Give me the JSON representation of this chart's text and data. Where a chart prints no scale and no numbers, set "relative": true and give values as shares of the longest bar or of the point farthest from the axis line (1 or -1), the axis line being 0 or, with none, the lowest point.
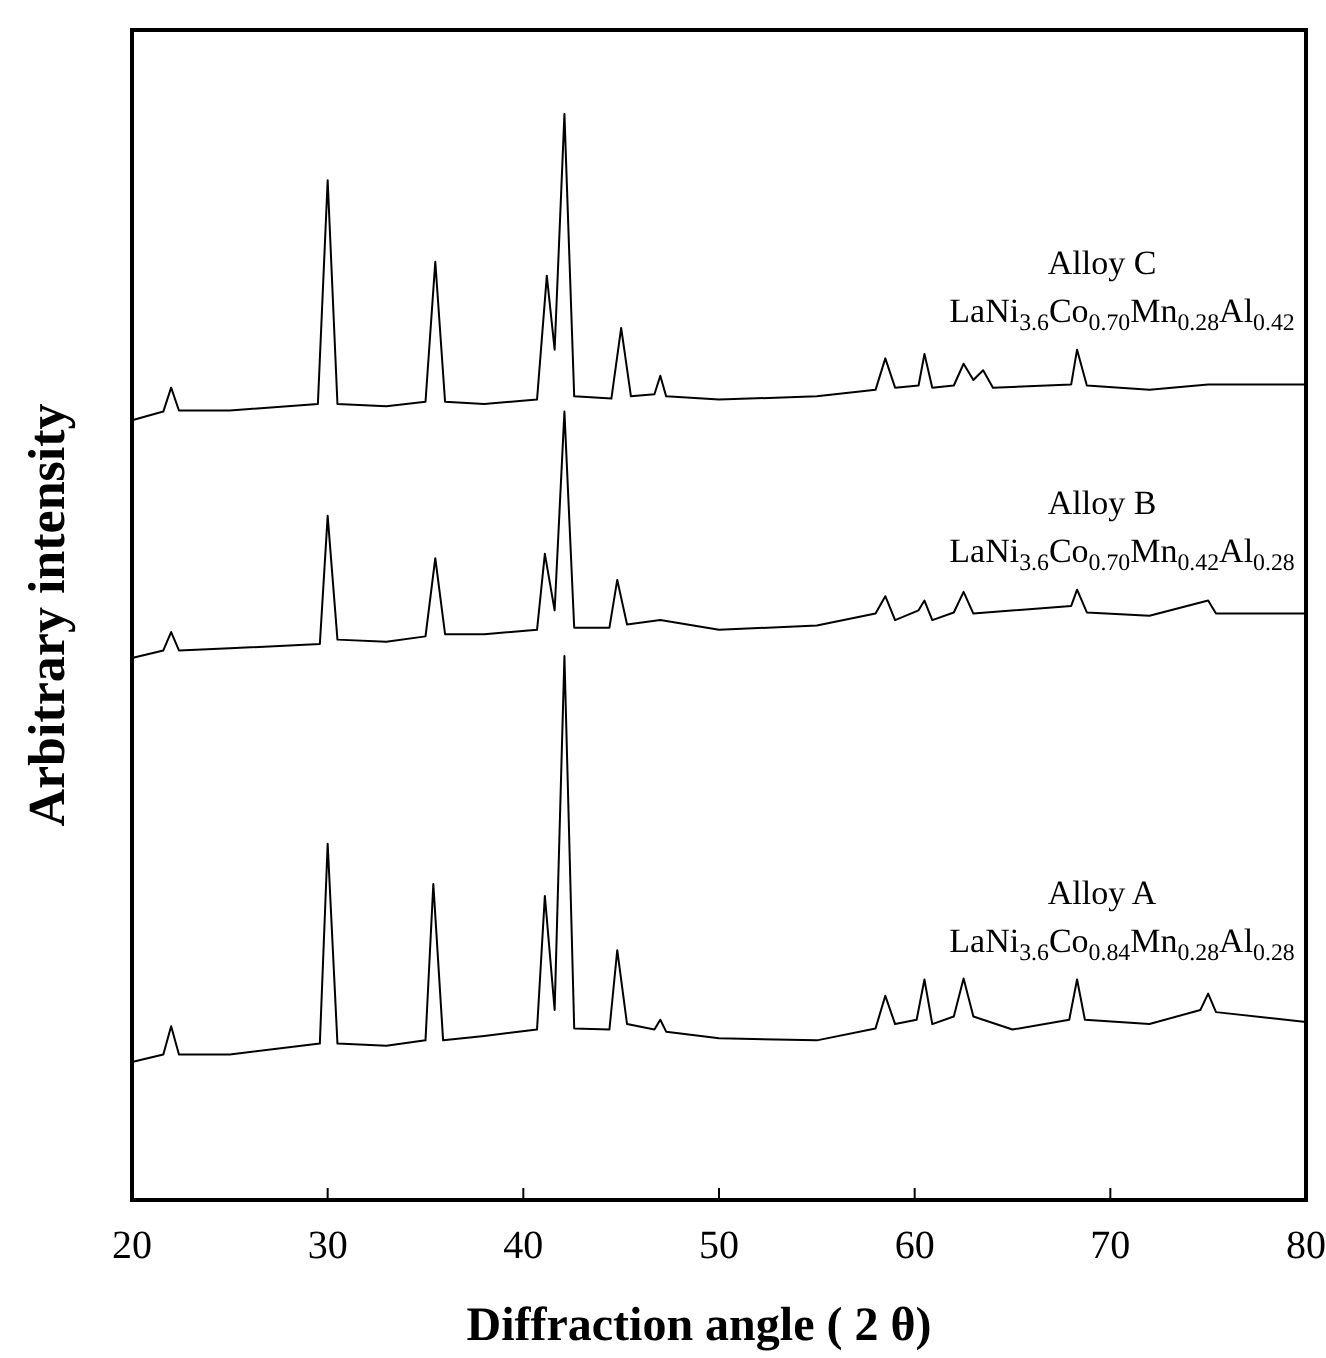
{
  "chart_data": {
    "type": "line",
    "relative": true,
    "xlabel": "Diffraction angle ( 2 θ)",
    "ylabel": "Arbitrary intensity",
    "xlim": [
      20,
      80
    ],
    "xticks": [
      20,
      30,
      40,
      50,
      60,
      70,
      80
    ],
    "marker": "none",
    "line_style": "solid",
    "grid": false,
    "tick_labels": "x",
    "series": [
      {
        "name": "Alloy C",
        "color": "#000000",
        "x": [
          20,
          21.6,
          22,
          22.4,
          25,
          29.5,
          30,
          30.5,
          33,
          35,
          35.5,
          36,
          38,
          40.7,
          41.2,
          41.6,
          42.1,
          42.6,
          44.5,
          45,
          45.5,
          46.7,
          47,
          47.3,
          50,
          55,
          58,
          58.5,
          59,
          60.2,
          60.5,
          60.9,
          62,
          62.5,
          63,
          63.5,
          64,
          68,
          68.3,
          68.8,
          72,
          75,
          80
        ],
        "values": [
          0.718,
          0.726,
          0.748,
          0.727,
          0.727,
          0.733,
          0.939,
          0.733,
          0.731,
          0.735,
          0.864,
          0.735,
          0.733,
          0.737,
          0.851,
          0.783,
          1,
          0.74,
          0.738,
          0.803,
          0.74,
          0.742,
          0.759,
          0.74,
          0.737,
          0.74,
          0.746,
          0.775,
          0.748,
          0.75,
          0.779,
          0.748,
          0.75,
          0.77,
          0.755,
          0.764,
          0.748,
          0.751,
          0.783,
          0.75,
          0.746,
          0.751,
          0.751
        ]
      },
      {
        "name": "Alloy B",
        "color": "#000000",
        "x": [
          20,
          21.6,
          22,
          22.4,
          25,
          29.6,
          30,
          30.5,
          33,
          35,
          35.5,
          36,
          38,
          40.7,
          41.1,
          41.6,
          42.1,
          42.6,
          44.4,
          44.8,
          45.3,
          47,
          50,
          55,
          58,
          58.5,
          59,
          60.2,
          60.5,
          60.9,
          62,
          62.5,
          63,
          68,
          68.3,
          68.8,
          72,
          75,
          75.4,
          80
        ],
        "values": [
          0.499,
          0.506,
          0.523,
          0.506,
          0.508,
          0.512,
          0.63,
          0.516,
          0.514,
          0.519,
          0.591,
          0.521,
          0.521,
          0.525,
          0.595,
          0.543,
          0.726,
          0.527,
          0.527,
          0.571,
          0.53,
          0.534,
          0.525,
          0.529,
          0.54,
          0.556,
          0.534,
          0.543,
          0.552,
          0.534,
          0.541,
          0.56,
          0.54,
          0.547,
          0.562,
          0.541,
          0.538,
          0.552,
          0.54,
          0.54
        ]
      },
      {
        "name": "Alloy A",
        "color": "#000000",
        "x": [
          20,
          21.6,
          22,
          22.4,
          25,
          29.6,
          30,
          30.5,
          33,
          35,
          35.4,
          35.9,
          38,
          40.7,
          41.1,
          41.6,
          42.1,
          42.6,
          44.4,
          44.8,
          45.3,
          46.7,
          47,
          47.3,
          50,
          55,
          58,
          58.5,
          59,
          60.1,
          60.5,
          60.9,
          62,
          62.5,
          63,
          65,
          67.9,
          68.3,
          68.7,
          72,
          74.6,
          75,
          75.4,
          80
        ],
        "values": [
          0.127,
          0.134,
          0.16,
          0.134,
          0.134,
          0.144,
          0.328,
          0.144,
          0.142,
          0.147,
          0.291,
          0.147,
          0.151,
          0.157,
          0.28,
          0.175,
          0.501,
          0.158,
          0.157,
          0.23,
          0.162,
          0.157,
          0.166,
          0.155,
          0.149,
          0.147,
          0.158,
          0.188,
          0.162,
          0.166,
          0.203,
          0.162,
          0.169,
          0.204,
          0.169,
          0.157,
          0.166,
          0.203,
          0.166,
          0.162,
          0.175,
          0.19,
          0.173,
          0.164
        ]
      }
    ],
    "annotations": [
      "LaNi$_{3.6}$Co$_{0.70}$Mn$_{0.28}$Al$_{0.42}$",
      "LaNi$_{3.6}$Co$_{0.70}$Mn$_{0.42}$Al$_{0.28}$",
      "LaNi$_{3.6}$Co$_{0.84}$Mn$_{0.28}$Al$_{0.28}$"
    ]
  }
}
